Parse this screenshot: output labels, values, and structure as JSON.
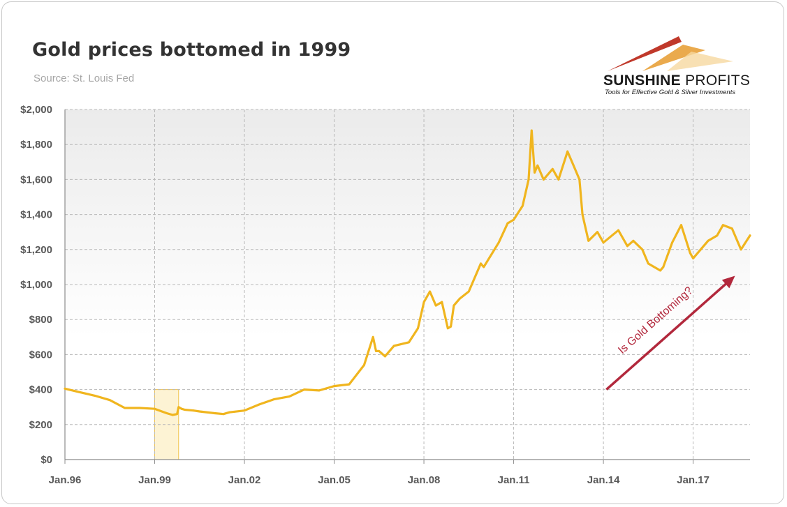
{
  "chart_data": {
    "type": "line",
    "title": "Gold prices bottomed in 1999",
    "subtitle": "Source: St. Louis Fed",
    "xlabel": "",
    "ylabel": "",
    "x_ticks": [
      "Jan.96",
      "Jan.99",
      "Jan.02",
      "Jan.05",
      "Jan.08",
      "Jan.11",
      "Jan.14",
      "Jan.17"
    ],
    "y_ticks": [
      "$0",
      "$200",
      "$400",
      "$600",
      "$800",
      "$1,000",
      "$1,200",
      "$1,400",
      "$1,600",
      "$1,800",
      "$2,000"
    ],
    "xlim": [
      1996.0,
      2018.9
    ],
    "ylim": [
      0,
      2000
    ],
    "grid": true,
    "series": [
      {
        "color": "#f0b51e",
        "x": [
          1996.0,
          1996.5,
          1997.0,
          1997.5,
          1998.0,
          1998.5,
          1999.0,
          1999.4,
          1999.6,
          1999.75,
          1999.8,
          1999.9,
          2000.0,
          2000.3,
          2000.5,
          2001.0,
          2001.3,
          2001.5,
          2002.0,
          2002.5,
          2003.0,
          2003.5,
          2004.0,
          2004.5,
          2005.0,
          2005.5,
          2006.0,
          2006.3,
          2006.4,
          2006.5,
          2006.7,
          2007.0,
          2007.5,
          2007.8,
          2008.0,
          2008.2,
          2008.4,
          2008.6,
          2008.8,
          2008.9,
          2009.0,
          2009.2,
          2009.5,
          2009.9,
          2010.0,
          2010.5,
          2010.8,
          2011.0,
          2011.3,
          2011.5,
          2011.6,
          2011.7,
          2011.8,
          2012.0,
          2012.3,
          2012.5,
          2012.8,
          2013.0,
          2013.2,
          2013.3,
          2013.5,
          2013.8,
          2014.0,
          2014.5,
          2014.8,
          2015.0,
          2015.3,
          2015.5,
          2015.9,
          2016.0,
          2016.3,
          2016.6,
          2016.9,
          2017.0,
          2017.5,
          2017.8,
          2018.0,
          2018.3,
          2018.6,
          2018.9
        ],
        "y": [
          405,
          385,
          365,
          340,
          295,
          295,
          290,
          265,
          255,
          260,
          300,
          290,
          285,
          280,
          275,
          265,
          260,
          270,
          280,
          315,
          345,
          360,
          400,
          395,
          420,
          430,
          540,
          700,
          620,
          620,
          590,
          650,
          670,
          750,
          900,
          960,
          880,
          900,
          750,
          760,
          880,
          920,
          960,
          1120,
          1100,
          1240,
          1350,
          1370,
          1450,
          1600,
          1880,
          1640,
          1680,
          1600,
          1660,
          1600,
          1760,
          1680,
          1600,
          1400,
          1250,
          1300,
          1240,
          1310,
          1220,
          1250,
          1200,
          1120,
          1080,
          1100,
          1240,
          1340,
          1180,
          1150,
          1250,
          1280,
          1340,
          1320,
          1200,
          1280
        ]
      }
    ],
    "highlight_region": {
      "x": [
        1999.0,
        1999.8
      ],
      "y": [
        0,
        400
      ]
    },
    "annotation": {
      "text": "Is Gold Bottoming?",
      "arrow_from": [
        2014.1,
        400
      ],
      "arrow_to": [
        2018.4,
        1050
      ]
    }
  },
  "logo": {
    "name_bold": "SUNSHINE",
    "name_light": "PROFITS",
    "tagline": "Tools for Effective Gold & Silver Investments"
  },
  "colors": {
    "line": "#f0b51e",
    "annotation": "#b2283c",
    "highlight": "#fdf3d4"
  }
}
